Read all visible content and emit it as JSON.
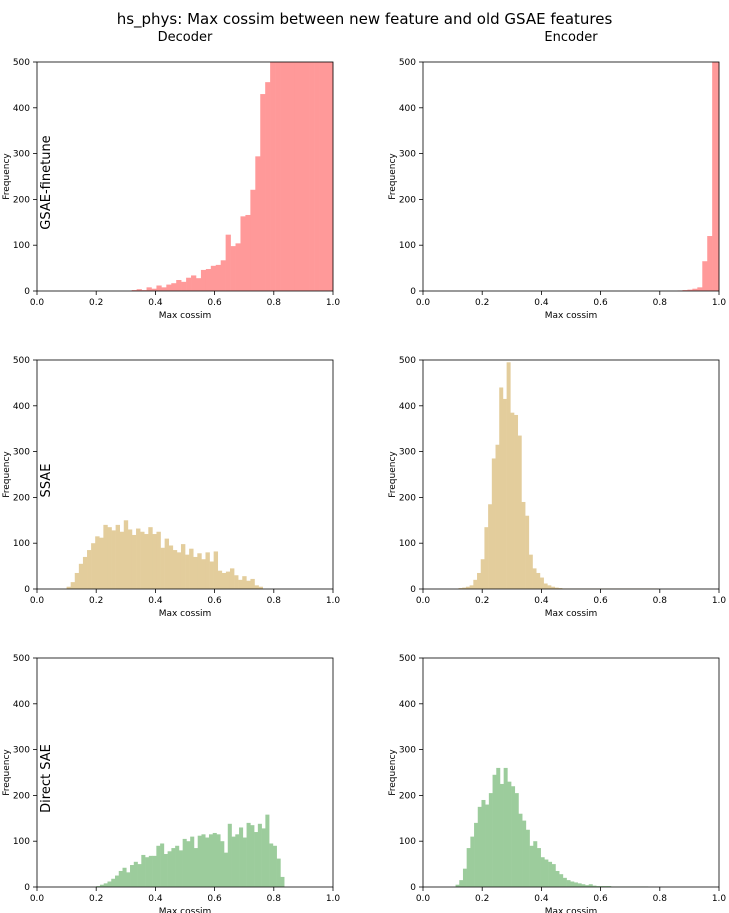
{
  "figure": {
    "title": "hs_phys: Max cossim between new feature and old GSAE features",
    "columns": [
      "Decoder",
      "Encoder"
    ],
    "rows": [
      "GSAE-finetune",
      "SSAE",
      "Direct SAE"
    ]
  },
  "colors": {
    "row0": "#ff9999",
    "row1": "#e3cd9c",
    "row2": "#9ccc9c"
  },
  "chart_data": [
    {
      "type": "bar",
      "title": "",
      "column": "Decoder",
      "row_label": "GSAE-finetune",
      "xlabel": "Max cossim",
      "ylabel": "Frequency",
      "xlim": [
        0,
        1
      ],
      "ylim": [
        0,
        500
      ],
      "xticks": [
        "0.0",
        "0.2",
        "0.4",
        "0.6",
        "0.8",
        "1.0"
      ],
      "yticks": [
        "0",
        "100",
        "200",
        "300",
        "400",
        "500"
      ],
      "bin_start": 0.32,
      "bin_width": 0.0167,
      "values": [
        2,
        4,
        2,
        8,
        5,
        12,
        8,
        14,
        17,
        24,
        20,
        29,
        34,
        28,
        46,
        48,
        55,
        57,
        67,
        123,
        98,
        104,
        163,
        166,
        221,
        294,
        430,
        456,
        520,
        520,
        520,
        520,
        520,
        520,
        520,
        520,
        520,
        520,
        520,
        520,
        520
      ]
    },
    {
      "type": "bar",
      "title": "",
      "column": "Encoder",
      "row_label": "",
      "xlabel": "Max cossim",
      "ylabel": "Frequency",
      "xlim": [
        0,
        1
      ],
      "ylim": [
        0,
        500
      ],
      "xticks": [
        "0.0",
        "0.2",
        "0.4",
        "0.6",
        "0.8",
        "1.0"
      ],
      "yticks": [
        "0",
        "100",
        "200",
        "300",
        "400",
        "500"
      ],
      "bin_start": 0.86,
      "bin_width": 0.0167,
      "values": [
        1,
        2,
        3,
        5,
        8,
        65,
        120,
        520,
        520
      ]
    },
    {
      "type": "bar",
      "title": "",
      "column": "Decoder",
      "row_label": "SSAE",
      "xlabel": "Max cossim",
      "ylabel": "Frequency",
      "xlim": [
        0,
        1
      ],
      "ylim": [
        0,
        500
      ],
      "xticks": [
        "0.0",
        "0.2",
        "0.4",
        "0.6",
        "0.8",
        "1.0"
      ],
      "yticks": [
        "0",
        "100",
        "200",
        "300",
        "400",
        "500"
      ],
      "bin_start": 0.1,
      "bin_width": 0.0138,
      "values": [
        5,
        15,
        35,
        55,
        70,
        85,
        100,
        115,
        112,
        140,
        135,
        128,
        140,
        125,
        150,
        130,
        118,
        132,
        125,
        120,
        135,
        120,
        125,
        90,
        110,
        95,
        85,
        80,
        98,
        75,
        88,
        70,
        78,
        65,
        80,
        60,
        82,
        40,
        35,
        38,
        45,
        30,
        20,
        28,
        18,
        22,
        8,
        5
      ]
    },
    {
      "type": "bar",
      "title": "",
      "column": "Encoder",
      "row_label": "",
      "xlabel": "Max cossim",
      "ylabel": "Frequency",
      "xlim": [
        0,
        1
      ],
      "ylim": [
        0,
        500
      ],
      "xticks": [
        "0.0",
        "0.2",
        "0.4",
        "0.6",
        "0.8",
        "1.0"
      ],
      "yticks": [
        "0",
        "100",
        "200",
        "300",
        "400",
        "500"
      ],
      "bin_start": 0.12,
      "bin_width": 0.0125,
      "values": [
        2,
        3,
        5,
        8,
        20,
        35,
        65,
        135,
        185,
        285,
        315,
        440,
        415,
        495,
        385,
        380,
        335,
        190,
        160,
        75,
        45,
        35,
        25,
        12,
        8,
        5,
        3,
        2,
        1,
        1,
        1,
        1,
        1,
        1,
        1,
        1,
        1,
        1,
        1,
        1,
        1,
        1,
        1,
        1,
        1,
        1,
        1,
        1,
        1,
        1,
        1,
        1,
        1,
        1
      ]
    },
    {
      "type": "bar",
      "title": "",
      "column": "Decoder",
      "row_label": "Direct SAE",
      "xlabel": "Max cossim",
      "ylabel": "Frequency",
      "xlim": [
        0,
        1
      ],
      "ylim": [
        0,
        500
      ],
      "xticks": [
        "0.0",
        "0.2",
        "0.4",
        "0.6",
        "0.8",
        "1.0"
      ],
      "yticks": [
        "0",
        "100",
        "200",
        "300",
        "400",
        "500"
      ],
      "bin_start": 0.2,
      "bin_width": 0.0127,
      "values": [
        2,
        5,
        8,
        12,
        18,
        25,
        35,
        42,
        32,
        48,
        55,
        50,
        70,
        65,
        68,
        68,
        90,
        95,
        72,
        78,
        85,
        90,
        80,
        105,
        100,
        110,
        85,
        112,
        115,
        108,
        115,
        118,
        115,
        100,
        75,
        138,
        110,
        115,
        130,
        108,
        140,
        135,
        120,
        138,
        128,
        158,
        95,
        90,
        62,
        22
      ]
    },
    {
      "type": "bar",
      "title": "",
      "column": "Encoder",
      "row_label": "",
      "xlabel": "Max cossim",
      "ylabel": "Frequency",
      "xlim": [
        0,
        1
      ],
      "ylim": [
        0,
        500
      ],
      "xticks": [
        "0.0",
        "0.2",
        "0.4",
        "0.6",
        "0.8",
        "1.0"
      ],
      "yticks": [
        "0",
        "100",
        "200",
        "300",
        "400",
        "500"
      ],
      "bin_start": 0.11,
      "bin_width": 0.0125,
      "values": [
        5,
        15,
        40,
        85,
        110,
        140,
        175,
        190,
        180,
        205,
        245,
        260,
        225,
        260,
        230,
        220,
        205,
        160,
        145,
        125,
        90,
        100,
        85,
        65,
        60,
        55,
        50,
        35,
        28,
        20,
        15,
        12,
        10,
        8,
        6,
        4,
        6,
        3,
        2,
        2,
        2,
        2,
        1,
        1,
        1,
        1,
        1,
        1,
        1,
        1,
        1,
        1
      ]
    }
  ]
}
